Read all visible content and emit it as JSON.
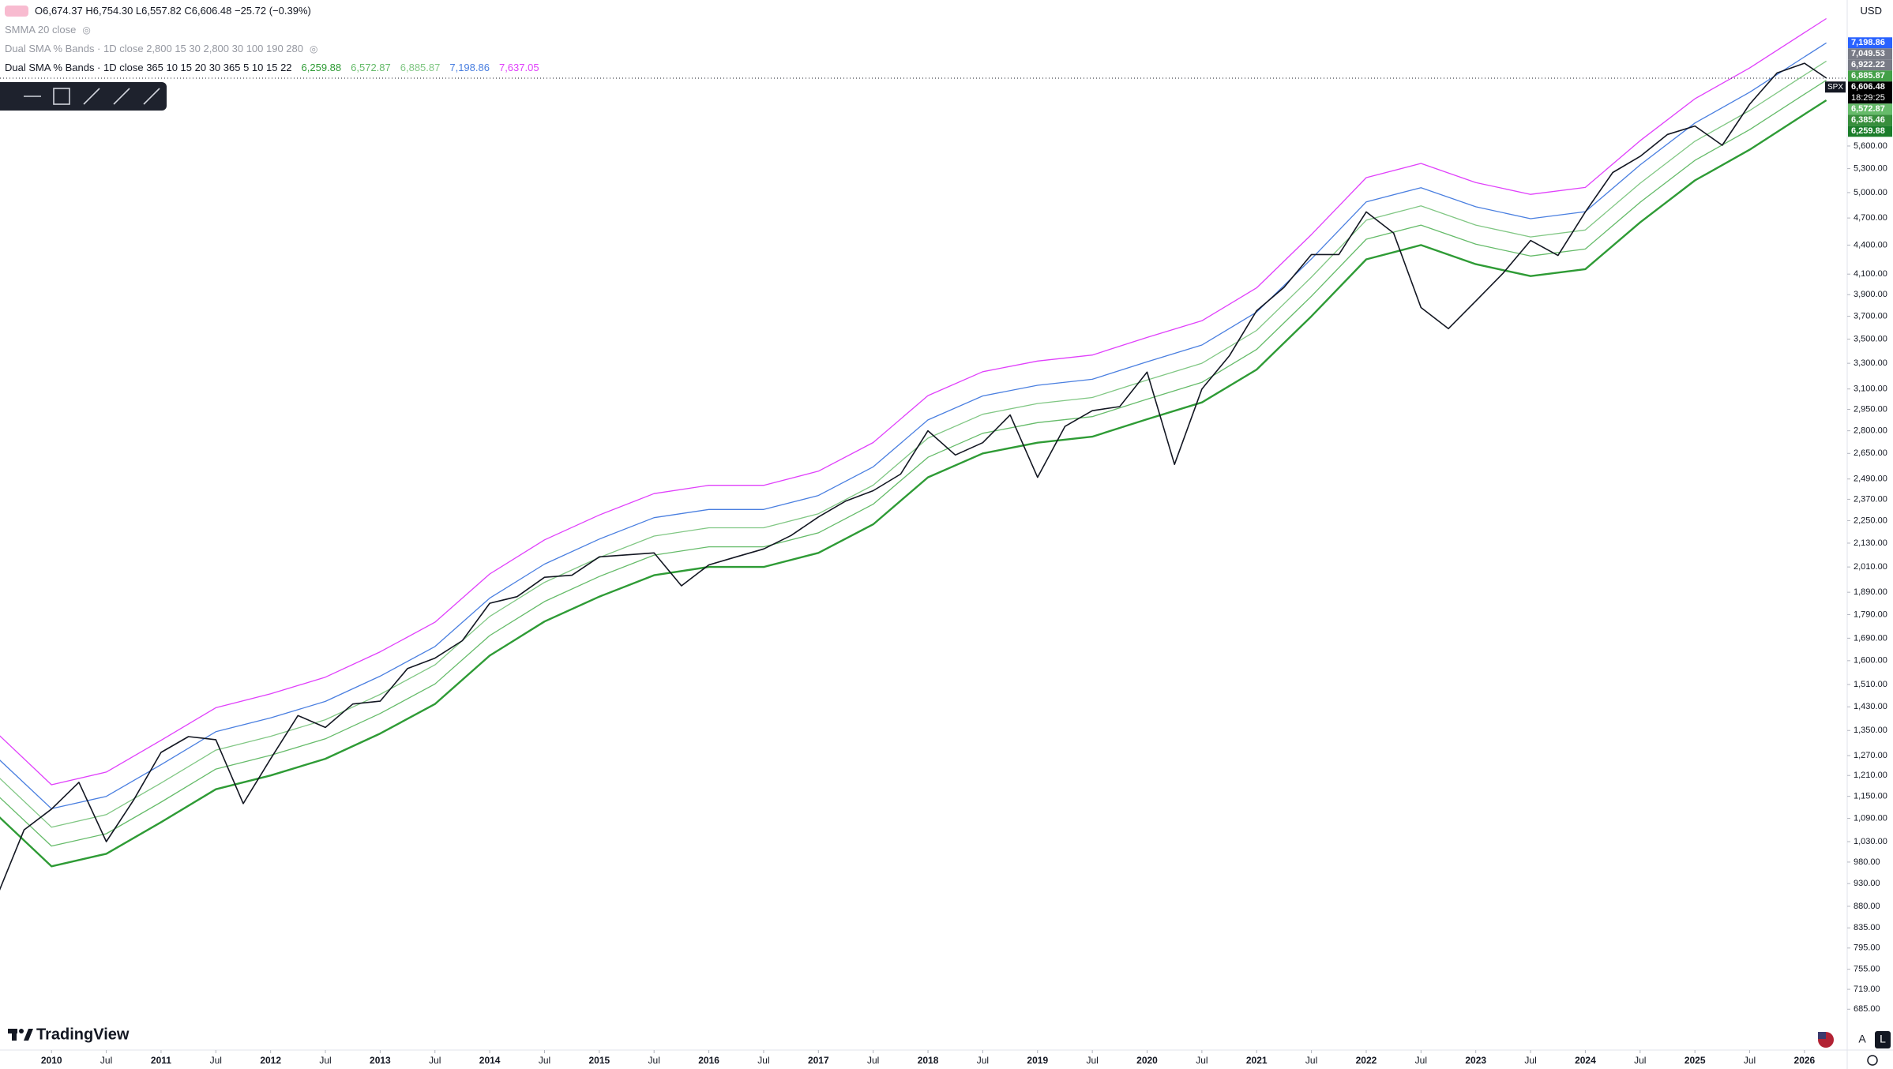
{
  "header": {
    "ohlc": "O6,674.37 H6,754.30 L6,557.82 C6,606.48 −25.72 (−0.39%)",
    "indicators": [
      "SMMA 20 close",
      "Dual SMA % Bands · 1D close 2,800 15 30 2,800 30 100 190 280",
      "Dual SMA % Bands · 1D close 365 10 15 20 30 365 5 10 15 22"
    ],
    "currency": "USD",
    "brand": "TradingView",
    "scale_buttons": [
      "A",
      "L"
    ]
  },
  "chart_data": {
    "type": "line",
    "log_scale": true,
    "grid": false,
    "xlim": [
      2009.53,
      2026.39
    ],
    "ylim": [
      657,
      7990
    ],
    "xticks": [
      2010,
      {
        "value": 2010.5,
        "label": "Jul"
      },
      2011,
      {
        "value": 2011.5,
        "label": "Jul"
      },
      2012,
      {
        "value": 2012.5,
        "label": "Jul"
      },
      2013,
      {
        "value": 2013.5,
        "label": "Jul"
      },
      2014,
      {
        "value": 2014.5,
        "label": "Jul"
      },
      2015,
      {
        "value": 2015.5,
        "label": "Jul"
      },
      2016,
      {
        "value": 2016.5,
        "label": "Jul"
      },
      2017,
      {
        "value": 2017.5,
        "label": "Jul"
      },
      2018,
      {
        "value": 2018.5,
        "label": "Jul"
      },
      2019,
      {
        "value": 2019.5,
        "label": "Jul"
      },
      2020,
      {
        "value": 2020.5,
        "label": "Jul"
      },
      2021,
      {
        "value": 2021.5,
        "label": "Jul"
      },
      2022,
      {
        "value": 2022.5,
        "label": "Jul"
      },
      2023,
      {
        "value": 2023.5,
        "label": "Jul"
      },
      2024,
      {
        "value": 2024.5,
        "label": "Jul"
      },
      2025,
      {
        "value": 2025.5,
        "label": "Jul"
      },
      2026
    ],
    "yticks": [
      {
        "value": 5600,
        "label": "5,600.00"
      },
      {
        "value": 5300,
        "label": "5,300.00"
      },
      {
        "value": 5000,
        "label": "5,000.00"
      },
      {
        "value": 4700,
        "label": "4,700.00"
      },
      {
        "value": 4400,
        "label": "4,400.00"
      },
      {
        "value": 4100,
        "label": "4,100.00"
      },
      {
        "value": 3900,
        "label": "3,900.00"
      },
      {
        "value": 3700,
        "label": "3,700.00"
      },
      {
        "value": 3500,
        "label": "3,500.00"
      },
      {
        "value": 3300,
        "label": "3,300.00"
      },
      {
        "value": 3100,
        "label": "3,100.00"
      },
      {
        "value": 2950,
        "label": "2,950.00"
      },
      {
        "value": 2800,
        "label": "2,800.00"
      },
      {
        "value": 2650,
        "label": "2,650.00"
      },
      {
        "value": 2490,
        "label": "2,490.00"
      },
      {
        "value": 2370,
        "label": "2,370.00"
      },
      {
        "value": 2250,
        "label": "2,250.00"
      },
      {
        "value": 2130,
        "label": "2,130.00"
      },
      {
        "value": 2010,
        "label": "2,010.00"
      },
      {
        "value": 1890,
        "label": "1,890.00"
      },
      {
        "value": 1790,
        "label": "1,790.00"
      },
      {
        "value": 1690,
        "label": "1,690.00"
      },
      {
        "value": 1600,
        "label": "1,600.00"
      },
      {
        "value": 1510,
        "label": "1,510.00"
      },
      {
        "value": 1430,
        "label": "1,430.00"
      },
      {
        "value": 1350,
        "label": "1,350.00"
      },
      {
        "value": 1270,
        "label": "1,270.00"
      },
      {
        "value": 1210,
        "label": "1,210.00"
      },
      {
        "value": 1150,
        "label": "1,150.00"
      },
      {
        "value": 1090,
        "label": "1,090.00"
      },
      {
        "value": 1030,
        "label": "1,030.00"
      },
      {
        "value": 980,
        "label": "980.00"
      },
      {
        "value": 930,
        "label": "930.00"
      },
      {
        "value": 880,
        "label": "880.00"
      },
      {
        "value": 835,
        "label": "835.00"
      },
      {
        "value": 795,
        "label": "795.00"
      },
      {
        "value": 755,
        "label": "755.00"
      },
      {
        "value": 719,
        "label": "719.00"
      },
      {
        "value": 685,
        "label": "685.00"
      }
    ],
    "x": [
      2009.5,
      2009.75,
      2010,
      2010.25,
      2010.5,
      2010.75,
      2011,
      2011.25,
      2011.5,
      2011.75,
      2012,
      2012.25,
      2012.5,
      2012.75,
      2013,
      2013.25,
      2013.5,
      2013.75,
      2014,
      2014.25,
      2014.5,
      2014.75,
      2015,
      2015.25,
      2015.5,
      2015.75,
      2016,
      2016.25,
      2016.5,
      2016.75,
      2017,
      2017.25,
      2017.5,
      2017.75,
      2018,
      2018.25,
      2018.5,
      2018.75,
      2019,
      2019.25,
      2019.5,
      2019.75,
      2020,
      2020.25,
      2020.5,
      2020.75,
      2021,
      2021.25,
      2021.5,
      2021.75,
      2022,
      2022.25,
      2022.5,
      2022.75,
      2023,
      2023.25,
      2023.5,
      2023.75,
      2024,
      2024.25,
      2024.5,
      2024.75,
      2025,
      2025.25,
      2025.5,
      2025.75,
      2026,
      2026.2
    ],
    "series": [
      {
        "name": "SPX",
        "color": "#131722",
        "values": [
          900,
          1060,
          1115,
          1190,
          1030,
          1140,
          1280,
          1330,
          1320,
          1130,
          1260,
          1400,
          1360,
          1440,
          1450,
          1570,
          1610,
          1680,
          1840,
          1870,
          1960,
          1970,
          2060,
          2070,
          2080,
          1920,
          2020,
          2060,
          2100,
          2170,
          2270,
          2360,
          2420,
          2520,
          2800,
          2640,
          2720,
          2910,
          2500,
          2830,
          2940,
          2970,
          3230,
          2580,
          3100,
          3360,
          3750,
          3970,
          4300,
          4300,
          4770,
          4530,
          3780,
          3590,
          3840,
          4110,
          4450,
          4290,
          4770,
          5250,
          5460,
          5760,
          5880,
          5610,
          6200,
          6690,
          6850,
          6606.48
        ]
      }
    ],
    "band_x": [
      2009.5,
      2010,
      2010.5,
      2011,
      2011.5,
      2012,
      2012.5,
      2013,
      2013.5,
      2014,
      2014.5,
      2015,
      2015.5,
      2016,
      2016.5,
      2017,
      2017.5,
      2018,
      2018.5,
      2019,
      2019.5,
      2020,
      2020.5,
      2021,
      2021.5,
      2022,
      2022.5,
      2023,
      2023.5,
      2024,
      2024.5,
      2025,
      2025.5,
      2026,
      2026.2
    ],
    "bands": [
      {
        "color": "#2e9b35",
        "width": 2.4,
        "values": [
          1100,
          970,
          1000,
          1080,
          1170,
          1210,
          1260,
          1340,
          1440,
          1620,
          1760,
          1870,
          1970,
          2010,
          2010,
          2080,
          2230,
          2500,
          2650,
          2720,
          2760,
          2880,
          3000,
          3250,
          3700,
          4250,
          4400,
          4200,
          4080,
          4150,
          4650,
          5150,
          5550,
          6050,
          6259.88
        ]
      },
      {
        "color": "#66bb6a",
        "width": 1.3,
        "values": [
          1155,
          1019,
          1050,
          1134,
          1229,
          1271,
          1323,
          1407,
          1512,
          1701,
          1848,
          1964,
          2069,
          2111,
          2111,
          2184,
          2342,
          2625,
          2783,
          2856,
          2898,
          3024,
          3150,
          3413,
          3885,
          4463,
          4620,
          4410,
          4284,
          4358,
          4883,
          5408,
          5828,
          6353,
          6572.87
        ]
      },
      {
        "color": "#81c784",
        "width": 1.3,
        "values": [
          1210,
          1067,
          1100,
          1188,
          1287,
          1331,
          1386,
          1474,
          1584,
          1782,
          1936,
          2057,
          2167,
          2211,
          2211,
          2288,
          2453,
          2750,
          2915,
          2992,
          3036,
          3168,
          3300,
          3575,
          4070,
          4675,
          4840,
          4620,
          4488,
          4565,
          5115,
          5665,
          6105,
          6655,
          6885.87
        ]
      },
      {
        "color": "#4a7fe0",
        "width": 1.3,
        "values": [
          1265,
          1116,
          1150,
          1242,
          1346,
          1392,
          1449,
          1541,
          1656,
          1863,
          2024,
          2151,
          2266,
          2312,
          2312,
          2392,
          2565,
          2875,
          3048,
          3128,
          3174,
          3312,
          3450,
          3738,
          4255,
          4888,
          5060,
          4830,
          4692,
          4773,
          5348,
          5923,
          6383,
          6958,
          7198.86
        ]
      },
      {
        "color": "#e040fb",
        "width": 1.3,
        "values": [
          1342,
          1183,
          1220,
          1318,
          1427,
          1476,
          1537,
          1635,
          1757,
          1976,
          2147,
          2281,
          2403,
          2452,
          2452,
          2538,
          2721,
          3050,
          3233,
          3318,
          3367,
          3514,
          3660,
          3965,
          4514,
          5185,
          5368,
          5124,
          4978,
          5063,
          5673,
          6283,
          6771,
          7381,
          7637.05
        ]
      }
    ],
    "legend_values": [
      "6,259.88",
      "6,572.87",
      "6,885.87",
      "7,198.86",
      "7,637.05"
    ],
    "price_tags": [
      {
        "value": 7198.86,
        "label": "7,198.86",
        "color": "#2962ff"
      },
      {
        "value": 7049.53,
        "label": "7,049.53",
        "color": "#787b86"
      },
      {
        "value": 6922.22,
        "label": "6,922.22",
        "color": "#787b86"
      },
      {
        "value": 6885.87,
        "label": "6,885.87",
        "color": "#43a047"
      },
      {
        "value": 6606.48,
        "label": "6,606.48",
        "color": "#000000",
        "countdown": "18:29:25"
      },
      {
        "value": 6572.87,
        "label": "6,572.87",
        "color": "#66bb6a"
      },
      {
        "value": 6385.46,
        "label": "6,385.46",
        "color": "#388e3c"
      },
      {
        "value": 6259.88,
        "label": "6,259.88",
        "color": "#1b7d2a"
      }
    ]
  }
}
